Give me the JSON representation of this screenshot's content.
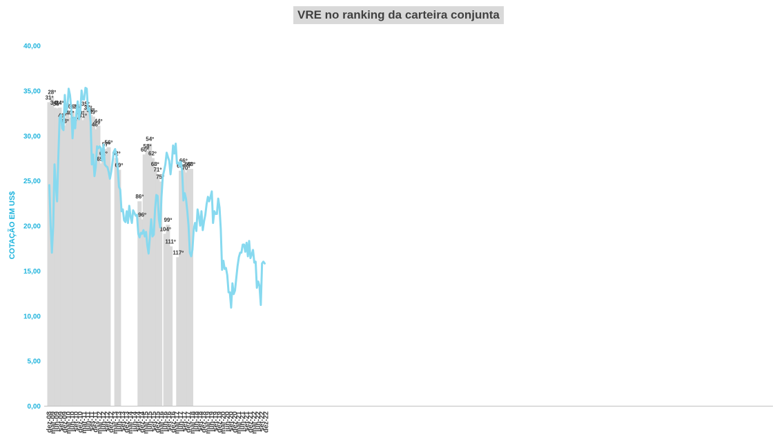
{
  "title": "VRE no ranking da carteira conjunta",
  "chart_data": {
    "type": "bar+line",
    "title": "VRE no ranking da carteira conjunta",
    "ylabel": "COTAÇÃO EM US$",
    "ylim": [
      0,
      40
    ],
    "yticks": [
      "0,00",
      "5,00",
      "10,00",
      "15,00",
      "20,00",
      "25,00",
      "30,00",
      "35,00",
      "40,00"
    ],
    "grid": false,
    "xticks": [
      "dez-08",
      "mar-09",
      "jun-09",
      "set-09",
      "dez-09",
      "mar-10",
      "jun-10",
      "set-10",
      "dez-10",
      "mar-11",
      "jun-11",
      "set-11",
      "dez-11",
      "mar-12",
      "jun-12",
      "set-12",
      "dez-12",
      "mar-13",
      "jun-13",
      "set-13",
      "dez-13",
      "mar-14",
      "jun-14",
      "set-14",
      "dez-14",
      "mar-15",
      "jun-15",
      "set-15",
      "dez-15",
      "mar-16",
      "jun-16",
      "set-16",
      "dez-16",
      "mar-17",
      "jun-17",
      "set-17",
      "dez-17",
      "mar-18",
      "jun-18",
      "set-18",
      "dez-18",
      "mar-19",
      "jun-19",
      "set-19",
      "dez-19",
      "mar-20",
      "jun-20",
      "set-20",
      "dez-20",
      "mar-21",
      "jun-21",
      "set-21",
      "dez-21",
      "mar-22",
      "jun-22",
      "set-22",
      "dez-22"
    ],
    "ranking_bars": [
      {
        "month": 0,
        "value": 33.7,
        "label": "31º"
      },
      {
        "month": 2,
        "value": 34.3,
        "label": "28º"
      },
      {
        "month": 4,
        "value": 33.1,
        "label": "34º"
      },
      {
        "month": 6,
        "value": 33.0,
        "label": "35º"
      },
      {
        "month": 8,
        "value": 33.1,
        "label": "34º"
      },
      {
        "month": 10,
        "value": 31.7,
        "label": "41º"
      },
      {
        "month": 12,
        "value": 31.1,
        "label": "43º"
      },
      {
        "month": 14,
        "value": 32.8,
        "label": "36º"
      },
      {
        "month": 16,
        "value": 32.0,
        "label": "40º"
      },
      {
        "month": 18,
        "value": 32.7,
        "label": "36º"
      },
      {
        "month": 20,
        "value": 31.3,
        "label": "43º"
      },
      {
        "month": 22,
        "value": 32.7,
        "label": "36º"
      },
      {
        "month": 24,
        "value": 32.0,
        "label": "40º"
      },
      {
        "month": 26,
        "value": 31.7,
        "label": "41º"
      },
      {
        "month": 28,
        "value": 33.0,
        "label": "35º"
      },
      {
        "month": 30,
        "value": 32.6,
        "label": "37º"
      },
      {
        "month": 32,
        "value": 32.3,
        "label": "38º"
      },
      {
        "month": 34,
        "value": 32.1,
        "label": "39º"
      },
      {
        "month": 36,
        "value": 30.7,
        "label": "46º"
      },
      {
        "month": 38,
        "value": 31.1,
        "label": "44º"
      },
      {
        "month": 40,
        "value": 26.9,
        "label": "65º"
      },
      {
        "month": 42,
        "value": 27.5,
        "label": "62º"
      },
      {
        "month": 44,
        "value": 28.5,
        "label": "57º"
      },
      {
        "month": 46,
        "value": 28.7,
        "label": "56º"
      },
      {
        "month": 52,
        "value": 27.5,
        "label": "62º"
      },
      {
        "month": 54,
        "value": 26.2,
        "label": "69º"
      },
      {
        "month": 70,
        "value": 22.7,
        "label": "86º"
      },
      {
        "month": 72,
        "value": 20.7,
        "label": "96º"
      },
      {
        "month": 74,
        "value": 27.9,
        "label": "60º"
      },
      {
        "month": 76,
        "value": 28.3,
        "label": "58º"
      },
      {
        "month": 78,
        "value": 29.1,
        "label": "54º"
      },
      {
        "month": 80,
        "value": 27.5,
        "label": "62º"
      },
      {
        "month": 82,
        "value": 26.3,
        "label": "68º"
      },
      {
        "month": 84,
        "value": 25.7,
        "label": "71º"
      },
      {
        "month": 86,
        "value": 24.9,
        "label": "75º"
      },
      {
        "month": 90,
        "value": 19.1,
        "label": "104º"
      },
      {
        "month": 92,
        "value": 20.1,
        "label": "99º"
      },
      {
        "month": 94,
        "value": 17.7,
        "label": "111º"
      },
      {
        "month": 100,
        "value": 16.5,
        "label": "117º"
      },
      {
        "month": 102,
        "value": 26.1,
        "label": "69º"
      },
      {
        "month": 104,
        "value": 26.7,
        "label": "66º"
      },
      {
        "month": 106,
        "value": 25.9,
        "label": "70º"
      },
      {
        "month": 108,
        "value": 26.3,
        "label": "68º"
      },
      {
        "month": 110,
        "value": 26.3,
        "label": "68º"
      }
    ],
    "price_series": {
      "name": "",
      "color": "#87d9ef",
      "values": [
        24.5,
        20.0,
        17.0,
        20.0,
        26.8,
        24.5,
        22.7,
        27.8,
        32.0,
        32.3,
        30.8,
        30.6,
        34.5,
        32.6,
        33.2,
        35.2,
        34.5,
        33.0,
        29.7,
        32.0,
        30.8,
        32.5,
        33.8,
        31.8,
        32.6,
        35.0,
        34.0,
        34.0,
        35.3,
        35.2,
        32.8,
        33.0,
        31.5,
        26.8,
        27.9,
        25.5,
        26.5,
        28.8,
        28.6,
        28.8,
        28.6,
        27.2,
        29.0,
        26.8,
        26.6,
        26.5,
        26.0,
        25.2,
        26.0,
        27.0,
        28.2,
        28.5,
        27.8,
        26.5,
        24.3,
        24.0,
        21.6,
        21.8,
        20.6,
        20.4,
        21.6,
        20.3,
        22.2,
        21.0,
        20.3,
        21.7,
        21.4,
        21.1,
        21.2,
        19.1,
        18.7,
        19.2,
        19.1,
        19.5,
        18.8,
        19.3,
        17.8,
        16.9,
        18.8,
        20.7,
        18.8,
        19.0,
        21.8,
        23.4,
        23.3,
        20.7,
        19.8,
        23.2,
        25.5,
        26.1,
        26.8,
        28.1,
        27.6,
        27.2,
        25.7,
        27.0,
        28.9,
        28.0,
        29.1,
        26.9,
        27.0,
        26.6,
        27.1,
        26.1,
        22.8,
        23.6,
        23.0,
        21.6,
        20.0,
        17.0,
        16.6,
        17.3,
        19.6,
        20.3,
        19.4,
        21.8,
        21.0,
        20.0,
        21.6,
        19.5,
        20.5,
        21.2,
        22.4,
        23.2,
        22.7,
        23.2,
        23.8,
        20.3,
        21.6,
        21.3,
        21.3,
        23.0,
        22.0,
        19.6,
        15.1,
        16.1,
        15.2,
        15.3,
        14.5,
        12.6,
        12.6,
        10.9,
        13.6,
        12.4,
        12.8,
        14.2,
        15.5,
        16.5,
        17.0,
        17.0,
        17.9,
        17.9,
        17.1,
        18.1,
        16.6,
        18.3,
        16.4,
        16.8,
        17.3,
        15.9,
        16.0,
        13.1,
        13.8,
        13.3,
        11.2,
        15.8,
        16.0,
        15.8
      ]
    }
  }
}
